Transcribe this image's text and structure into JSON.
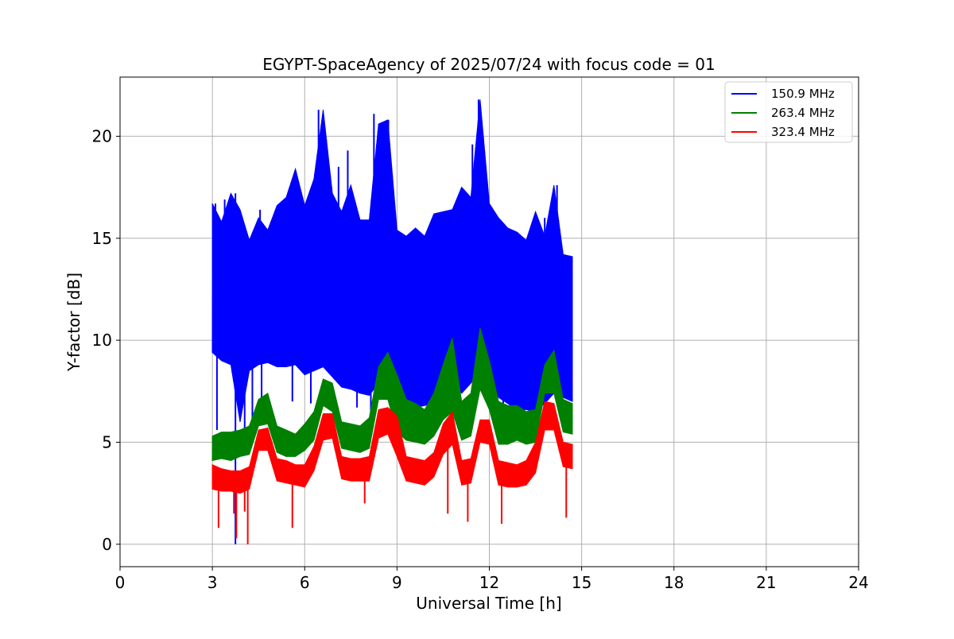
{
  "chart_data": {
    "type": "line",
    "title": "EGYPT-SpaceAgency of 2025/07/24 with focus code = 01",
    "xlabel": "Universal Time [h]",
    "ylabel": "Y-factor [dB]",
    "xlim": [
      0,
      24
    ],
    "ylim": [
      -1.1,
      22.9
    ],
    "xticks": [
      0,
      3,
      6,
      9,
      12,
      15,
      18,
      21,
      24
    ],
    "yticks": [
      0,
      5,
      10,
      15,
      20
    ],
    "grid": true,
    "legend_position": "top-right",
    "series": [
      {
        "name": "150.9 MHz",
        "color": "#0000ff",
        "x": [
          3.0,
          3.3,
          3.6,
          3.9,
          4.2,
          4.5,
          4.8,
          5.1,
          5.4,
          5.7,
          6.0,
          6.3,
          6.6,
          6.9,
          7.2,
          7.5,
          7.8,
          8.1,
          8.4,
          8.7,
          9.0,
          9.3,
          9.6,
          9.9,
          10.2,
          10.5,
          10.8,
          11.1,
          11.4,
          11.7,
          12.0,
          12.3,
          12.6,
          12.9,
          13.2,
          13.5,
          13.8,
          14.1,
          14.4,
          14.7
        ],
        "y": [
          11.8,
          12.1,
          11.6,
          11.9,
          11.4,
          11.7,
          11.9,
          11.6,
          11.8,
          12.0,
          11.9,
          11.9,
          11.9,
          11.7,
          11.4,
          11.3,
          10.8,
          10.6,
          11.0,
          11.5,
          11.0,
          10.7,
          10.4,
          10.2,
          10.6,
          11.0,
          11.2,
          11.1,
          11.3,
          11.6,
          11.3,
          10.9,
          10.6,
          10.8,
          10.4,
          10.1,
          10.3,
          10.6,
          10.3,
          10.8
        ],
        "min": [
          9.4,
          9.0,
          8.8,
          6.0,
          8.5,
          8.8,
          8.9,
          8.7,
          8.7,
          8.8,
          8.3,
          8.5,
          8.7,
          8.2,
          7.7,
          7.6,
          7.4,
          7.3,
          7.9,
          8.1,
          7.3,
          7.0,
          6.7,
          6.8,
          6.9,
          7.6,
          8.0,
          7.4,
          7.9,
          8.5,
          8.0,
          7.2,
          6.9,
          6.6,
          6.6,
          6.5,
          6.9,
          7.4,
          7.2,
          7.0
        ],
        "max": [
          16.7,
          15.8,
          17.2,
          16.4,
          14.9,
          16.0,
          15.4,
          16.6,
          17.0,
          18.4,
          16.6,
          17.9,
          21.3,
          17.2,
          16.3,
          17.6,
          15.9,
          15.9,
          20.6,
          20.8,
          15.4,
          15.1,
          15.5,
          15.1,
          16.2,
          16.3,
          16.4,
          17.5,
          17.0,
          21.8,
          16.7,
          16.0,
          15.5,
          15.3,
          14.9,
          16.3,
          15.1,
          17.6,
          14.2,
          14.1
        ],
        "dips": [
          [
            3.75,
            0.0
          ],
          [
            3.15,
            5.6
          ],
          [
            4.05,
            5.6
          ],
          [
            4.3,
            5.3
          ],
          [
            4.6,
            6.7
          ],
          [
            5.6,
            7.0
          ],
          [
            6.2,
            6.9
          ],
          [
            7.7,
            6.7
          ],
          [
            8.15,
            6.3
          ],
          [
            9.55,
            6.3
          ],
          [
            12.45,
            6.2
          ],
          [
            13.6,
            6.3
          ]
        ],
        "spikes": [
          [
            3.1,
            16.7
          ],
          [
            3.4,
            16.9
          ],
          [
            3.75,
            17.2
          ],
          [
            4.55,
            16.4
          ],
          [
            5.5,
            17.2
          ],
          [
            5.7,
            18.3
          ],
          [
            6.45,
            21.3
          ],
          [
            6.55,
            18.6
          ],
          [
            7.1,
            18.5
          ],
          [
            7.4,
            19.3
          ],
          [
            8.25,
            21.1
          ],
          [
            8.55,
            20.6
          ],
          [
            8.72,
            20.8
          ],
          [
            10.35,
            16.2
          ],
          [
            10.85,
            16.5
          ],
          [
            11.1,
            17.4
          ],
          [
            11.45,
            19.6
          ],
          [
            11.65,
            21.8
          ],
          [
            11.8,
            17.1
          ],
          [
            13.8,
            16.0
          ],
          [
            14.2,
            17.6
          ]
        ]
      },
      {
        "name": "263.4 MHz",
        "color": "#008000",
        "x": [
          3.0,
          3.3,
          3.6,
          3.9,
          4.2,
          4.5,
          4.8,
          5.1,
          5.4,
          5.7,
          6.0,
          6.3,
          6.6,
          6.9,
          7.2,
          7.5,
          7.8,
          8.1,
          8.4,
          8.7,
          9.0,
          9.3,
          9.6,
          9.9,
          10.2,
          10.5,
          10.8,
          11.1,
          11.4,
          11.7,
          12.0,
          12.3,
          12.6,
          12.9,
          13.2,
          13.5,
          13.8,
          14.1,
          14.4,
          14.7
        ],
        "y": [
          4.7,
          4.8,
          4.8,
          4.9,
          5.1,
          6.5,
          6.8,
          5.1,
          4.9,
          4.8,
          5.2,
          5.8,
          7.5,
          7.2,
          5.3,
          5.2,
          5.1,
          5.4,
          7.9,
          7.8,
          7.0,
          6.0,
          5.8,
          5.6,
          6.3,
          7.5,
          9.5,
          6.1,
          6.4,
          9.0,
          8.0,
          6.0,
          5.8,
          5.9,
          5.6,
          5.8,
          8.1,
          8.3,
          6.3,
          6.1
        ],
        "min": [
          4.1,
          4.2,
          4.1,
          4.3,
          4.4,
          5.8,
          5.9,
          4.5,
          4.3,
          4.3,
          4.6,
          5.1,
          6.8,
          6.5,
          4.7,
          4.6,
          4.5,
          4.7,
          7.1,
          7.1,
          5.5,
          5.1,
          5.0,
          4.9,
          5.3,
          6.1,
          6.5,
          5.1,
          5.3,
          7.6,
          6.6,
          4.9,
          4.9,
          5.1,
          4.9,
          5.0,
          7.4,
          7.4,
          5.5,
          5.4
        ],
        "max": [
          5.3,
          5.5,
          5.5,
          5.6,
          5.8,
          7.1,
          7.4,
          5.8,
          5.6,
          5.4,
          5.9,
          6.5,
          8.1,
          7.9,
          6.0,
          5.9,
          5.8,
          6.2,
          8.7,
          9.4,
          8.3,
          7.1,
          6.9,
          6.6,
          7.4,
          8.8,
          10.1,
          7.0,
          7.4,
          10.6,
          9.0,
          7.0,
          6.8,
          6.8,
          6.5,
          6.6,
          8.8,
          9.5,
          7.1,
          6.9
        ]
      },
      {
        "name": "323.4 MHz",
        "color": "#ff0000",
        "x": [
          3.0,
          3.3,
          3.6,
          3.9,
          4.2,
          4.5,
          4.8,
          5.1,
          5.4,
          5.7,
          6.0,
          6.3,
          6.6,
          6.9,
          7.2,
          7.5,
          7.8,
          8.1,
          8.4,
          8.7,
          9.0,
          9.3,
          9.6,
          9.9,
          10.2,
          10.5,
          10.8,
          11.1,
          11.4,
          11.7,
          12.0,
          12.3,
          12.6,
          12.9,
          13.2,
          13.5,
          13.8,
          14.1,
          14.4,
          14.7
        ],
        "y": [
          3.3,
          3.1,
          3.1,
          3.1,
          3.3,
          5.1,
          5.2,
          3.7,
          3.6,
          3.4,
          3.4,
          4.2,
          5.7,
          5.8,
          3.8,
          3.7,
          3.7,
          3.7,
          5.9,
          6.1,
          5.7,
          3.7,
          3.6,
          3.5,
          3.9,
          5.2,
          5.9,
          3.5,
          3.6,
          5.5,
          5.6,
          3.5,
          3.4,
          3.4,
          3.5,
          4.3,
          6.3,
          6.2,
          4.4,
          4.3
        ],
        "min": [
          2.7,
          2.6,
          2.6,
          2.5,
          2.7,
          4.6,
          4.6,
          3.1,
          3.0,
          2.9,
          2.8,
          3.6,
          5.1,
          5.2,
          3.2,
          3.1,
          3.1,
          3.1,
          5.2,
          5.4,
          4.3,
          3.1,
          3.0,
          2.9,
          3.3,
          4.4,
          4.9,
          2.9,
          3.0,
          5.0,
          4.9,
          2.9,
          2.8,
          2.8,
          2.9,
          3.5,
          5.6,
          5.6,
          3.8,
          3.7
        ],
        "max": [
          3.9,
          3.7,
          3.6,
          3.6,
          3.8,
          5.6,
          5.7,
          4.2,
          4.1,
          3.9,
          3.9,
          4.8,
          6.4,
          6.4,
          4.3,
          4.2,
          4.2,
          4.3,
          6.6,
          6.7,
          6.3,
          4.3,
          4.2,
          4.1,
          4.5,
          5.9,
          6.5,
          4.1,
          4.2,
          6.1,
          6.1,
          4.1,
          4.0,
          3.9,
          4.1,
          5.0,
          7.0,
          6.9,
          5.0,
          4.9
        ],
        "dips": [
          [
            3.2,
            0.8
          ],
          [
            3.7,
            1.5
          ],
          [
            3.78,
            0.3
          ],
          [
            4.15,
            0.0
          ],
          [
            4.05,
            1.6
          ],
          [
            5.6,
            0.8
          ],
          [
            7.95,
            2.0
          ],
          [
            10.65,
            1.5
          ],
          [
            11.3,
            1.1
          ],
          [
            12.4,
            1.0
          ],
          [
            14.5,
            1.3
          ]
        ]
      }
    ]
  }
}
